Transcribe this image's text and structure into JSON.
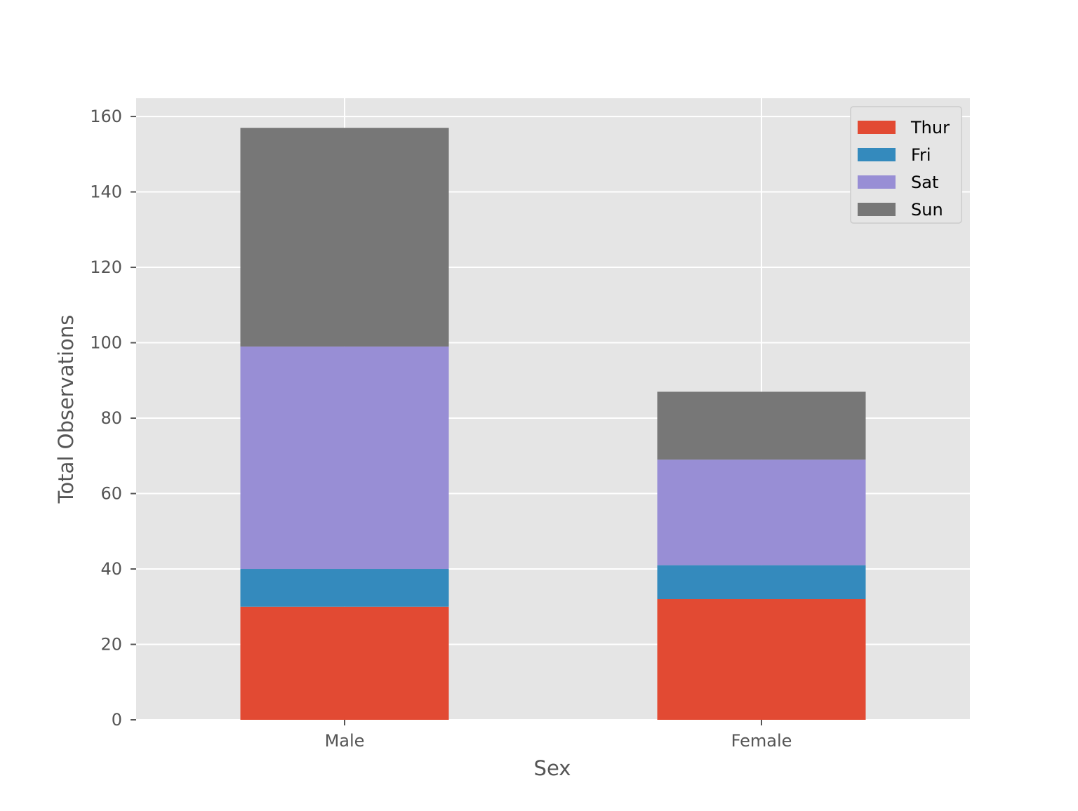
{
  "chart_data": {
    "type": "bar",
    "stacked": true,
    "title": "",
    "xlabel": "Sex",
    "ylabel": "Total Observations",
    "categories": [
      "Male",
      "Female"
    ],
    "series": [
      {
        "name": "Thur",
        "values": [
          30,
          32
        ],
        "color": "#E24A33"
      },
      {
        "name": "Fri",
        "values": [
          10,
          9
        ],
        "color": "#348ABD"
      },
      {
        "name": "Sat",
        "values": [
          59,
          28
        ],
        "color": "#988ED5"
      },
      {
        "name": "Sun",
        "values": [
          58,
          18
        ],
        "color": "#777777"
      }
    ],
    "ylim": [
      0,
      164.85
    ],
    "yticks": [
      0,
      20,
      40,
      60,
      80,
      100,
      120,
      140,
      160
    ],
    "grid": true,
    "legend_position": "top-right",
    "style": "ggplot",
    "colors": {
      "plot_background": "#E5E5E5",
      "grid": "#FFFFFF",
      "tick_text": "#555555",
      "legend_background": "#E5E5E5",
      "legend_border": "#CCCCCC"
    }
  }
}
